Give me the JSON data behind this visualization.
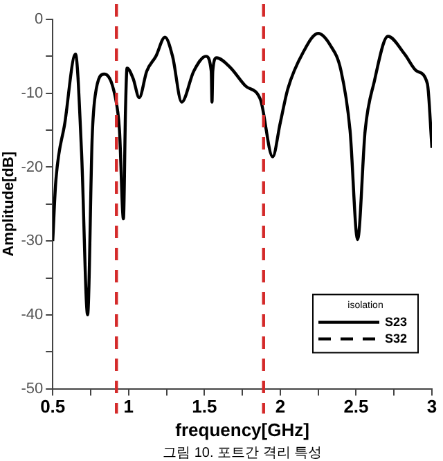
{
  "chart_data": {
    "type": "line",
    "xlabel": "frequency[GHz]",
    "ylabel": "Amplitude[dB]",
    "legend_title": "isolation",
    "legend": "bottom right",
    "grid": false,
    "marker": "none",
    "x": [
      0.5,
      0.52,
      0.58,
      0.65,
      0.69,
      0.73,
      0.76,
      0.78,
      0.84,
      0.91,
      0.94,
      0.966,
      0.98,
      0.99,
      1.03,
      1.07,
      1.12,
      1.18,
      1.24,
      1.29,
      1.35,
      1.43,
      1.51,
      1.545,
      1.55,
      1.555,
      1.58,
      1.67,
      1.77,
      1.87,
      1.95,
      2.0,
      2.05,
      2.15,
      2.25,
      2.33,
      2.4,
      2.46,
      2.51,
      2.56,
      2.62,
      2.71,
      2.82,
      2.9,
      2.97,
      3.0
    ],
    "xlim": [
      0.5,
      3
    ],
    "xticks": [
      0.5,
      {
        "value": 0.75,
        "label": null
      },
      1,
      {
        "value": 1.25,
        "label": null
      },
      1.5,
      {
        "value": 1.75,
        "label": null
      },
      2,
      {
        "value": 2.25,
        "label": null
      },
      2.5,
      {
        "value": 2.75,
        "label": null
      },
      3
    ],
    "ylim": [
      -50,
      0
    ],
    "yticks": [
      -50,
      {
        "value": -45,
        "label": null
      },
      -40,
      {
        "value": -35,
        "label": null
      },
      -30,
      {
        "value": -25,
        "label": null
      },
      -20,
      {
        "value": -15,
        "label": null
      },
      -10,
      {
        "value": -5,
        "label": null
      },
      0
    ],
    "series": [
      {
        "name": "S23",
        "color": "#000000",
        "line_style": "solid",
        "values": [
          -30,
          -22,
          -14,
          -4.7,
          -18,
          -40,
          -16,
          -10.3,
          -7.4,
          -10.3,
          -15,
          -27,
          -12,
          -6.6,
          -8,
          -10.6,
          -7,
          -5,
          -2.4,
          -5,
          -11.2,
          -7,
          -5,
          -7,
          -11.2,
          -7,
          -5.2,
          -6.5,
          -9,
          -10.9,
          -18.6,
          -14,
          -9.4,
          -4.5,
          -1.9,
          -3.5,
          -6.9,
          -15,
          -29.8,
          -15,
          -8.4,
          -2.3,
          -4.7,
          -7,
          -8.7,
          -17.4
        ]
      },
      {
        "name": "S32",
        "color": "#000000",
        "line_style": "dashed",
        "values": [
          null,
          null,
          null,
          null,
          null,
          null,
          null,
          null,
          null,
          null,
          null,
          null,
          null,
          null,
          null,
          null,
          null,
          null,
          null,
          null,
          null,
          null,
          null,
          null,
          null,
          null,
          null,
          null,
          null,
          null,
          null,
          null,
          null,
          null,
          null,
          null,
          null,
          null,
          null,
          null,
          null,
          null,
          null,
          null,
          null,
          null
        ]
      }
    ],
    "ref_lines": [
      {
        "axis": "x",
        "value": 0.92,
        "color": "#d42a2a",
        "line_style": "dashed"
      },
      {
        "axis": "x",
        "value": 1.89,
        "color": "#d42a2a",
        "line_style": "dashed"
      }
    ],
    "annotations": [
      "그림 10. 포트간 격리 특성"
    ]
  }
}
